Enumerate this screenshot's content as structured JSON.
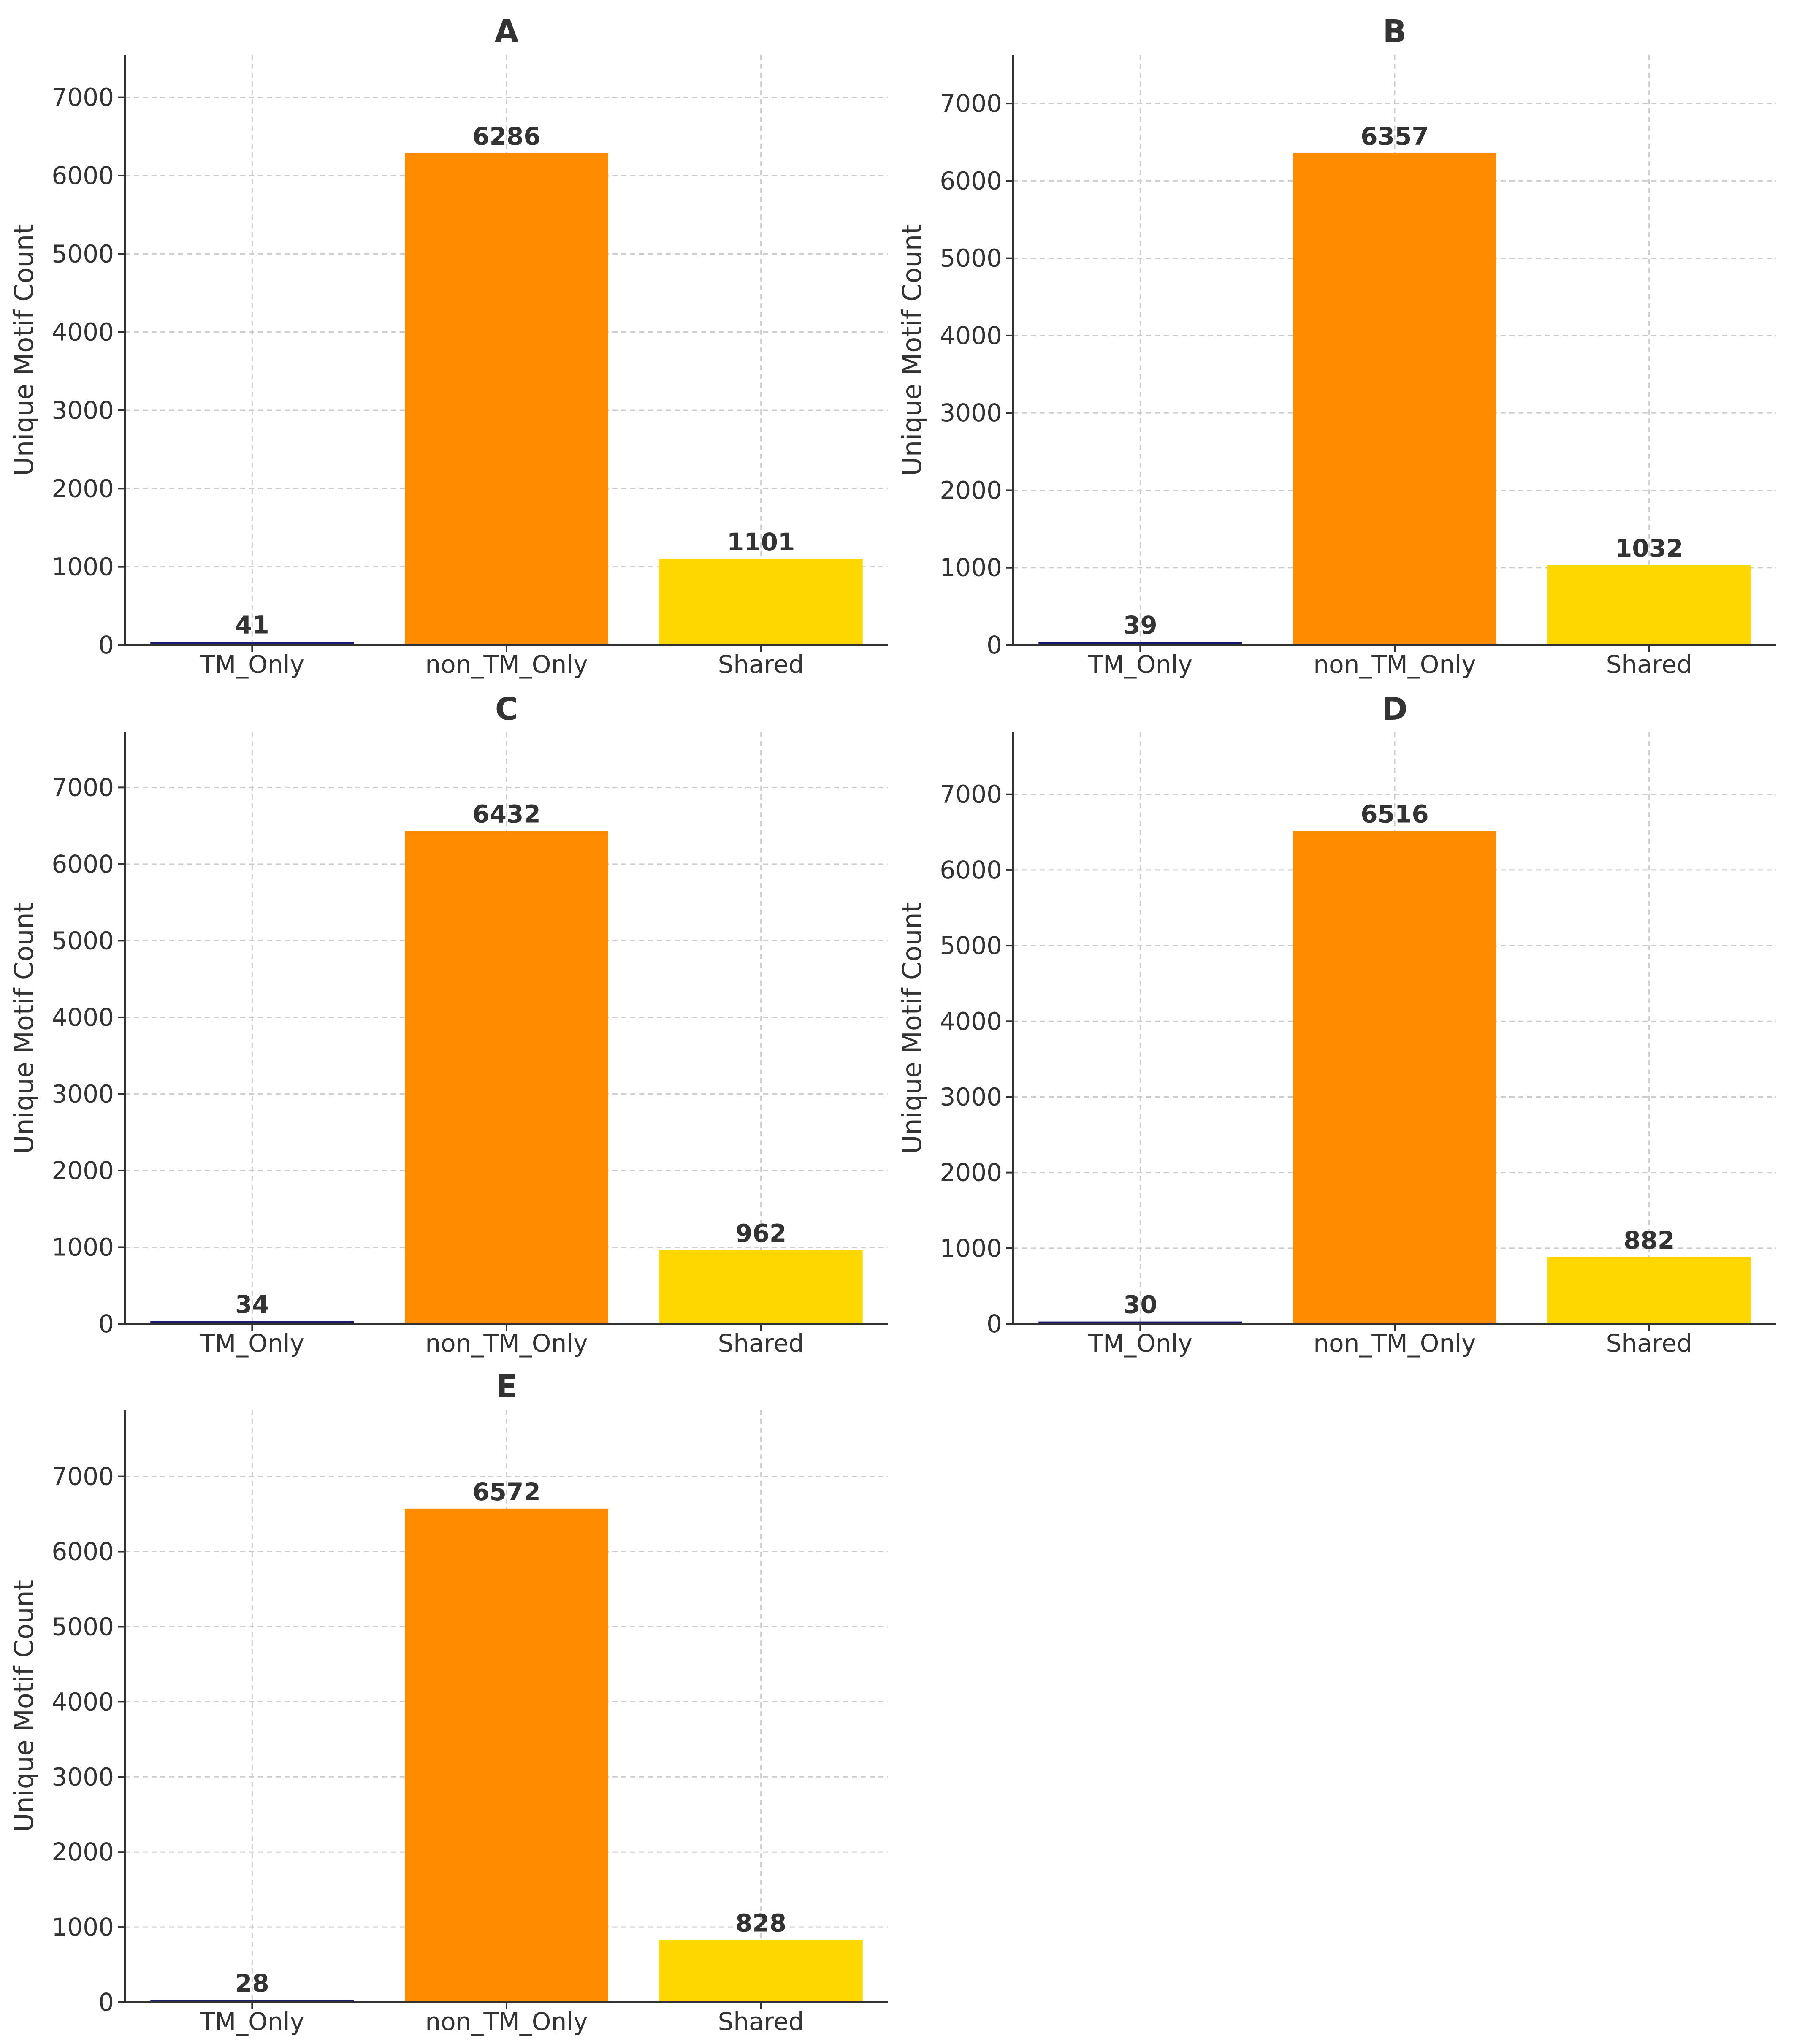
{
  "colors": {
    "TM_Only": "#191970",
    "non_TM_Only": "#FF8C00",
    "Shared": "#FFD700",
    "text": "#333333"
  },
  "chart_data": [
    {
      "type": "bar",
      "title": "A",
      "categories": [
        "TM_Only",
        "non_TM_Only",
        "Shared"
      ],
      "values": [
        41,
        6286,
        1101
      ],
      "xlabel": "",
      "ylabel": "Unique Motif Count",
      "ylim": [
        0,
        7543
      ],
      "yticks": [
        0,
        1000,
        2000,
        3000,
        4000,
        5000,
        6000,
        7000
      ],
      "grid": true
    },
    {
      "type": "bar",
      "title": "B",
      "categories": [
        "TM_Only",
        "non_TM_Only",
        "Shared"
      ],
      "values": [
        39,
        6357,
        1032
      ],
      "xlabel": "",
      "ylabel": "Unique Motif Count",
      "ylim": [
        0,
        7628
      ],
      "yticks": [
        0,
        1000,
        2000,
        3000,
        4000,
        5000,
        6000,
        7000
      ],
      "grid": true
    },
    {
      "type": "bar",
      "title": "C",
      "categories": [
        "TM_Only",
        "non_TM_Only",
        "Shared"
      ],
      "values": [
        34,
        6432,
        962
      ],
      "xlabel": "",
      "ylabel": "Unique Motif Count",
      "ylim": [
        0,
        7718
      ],
      "yticks": [
        0,
        1000,
        2000,
        3000,
        4000,
        5000,
        6000,
        7000
      ],
      "grid": true
    },
    {
      "type": "bar",
      "title": "D",
      "categories": [
        "TM_Only",
        "non_TM_Only",
        "Shared"
      ],
      "values": [
        30,
        6516,
        882
      ],
      "xlabel": "",
      "ylabel": "Unique Motif Count",
      "ylim": [
        0,
        7819
      ],
      "yticks": [
        0,
        1000,
        2000,
        3000,
        4000,
        5000,
        6000,
        7000
      ],
      "grid": true
    },
    {
      "type": "bar",
      "title": "E",
      "categories": [
        "TM_Only",
        "non_TM_Only",
        "Shared"
      ],
      "values": [
        28,
        6572,
        828
      ],
      "xlabel": "",
      "ylabel": "Unique Motif Count",
      "ylim": [
        0,
        7886
      ],
      "yticks": [
        0,
        1000,
        2000,
        3000,
        4000,
        5000,
        6000,
        7000
      ],
      "grid": true
    }
  ]
}
